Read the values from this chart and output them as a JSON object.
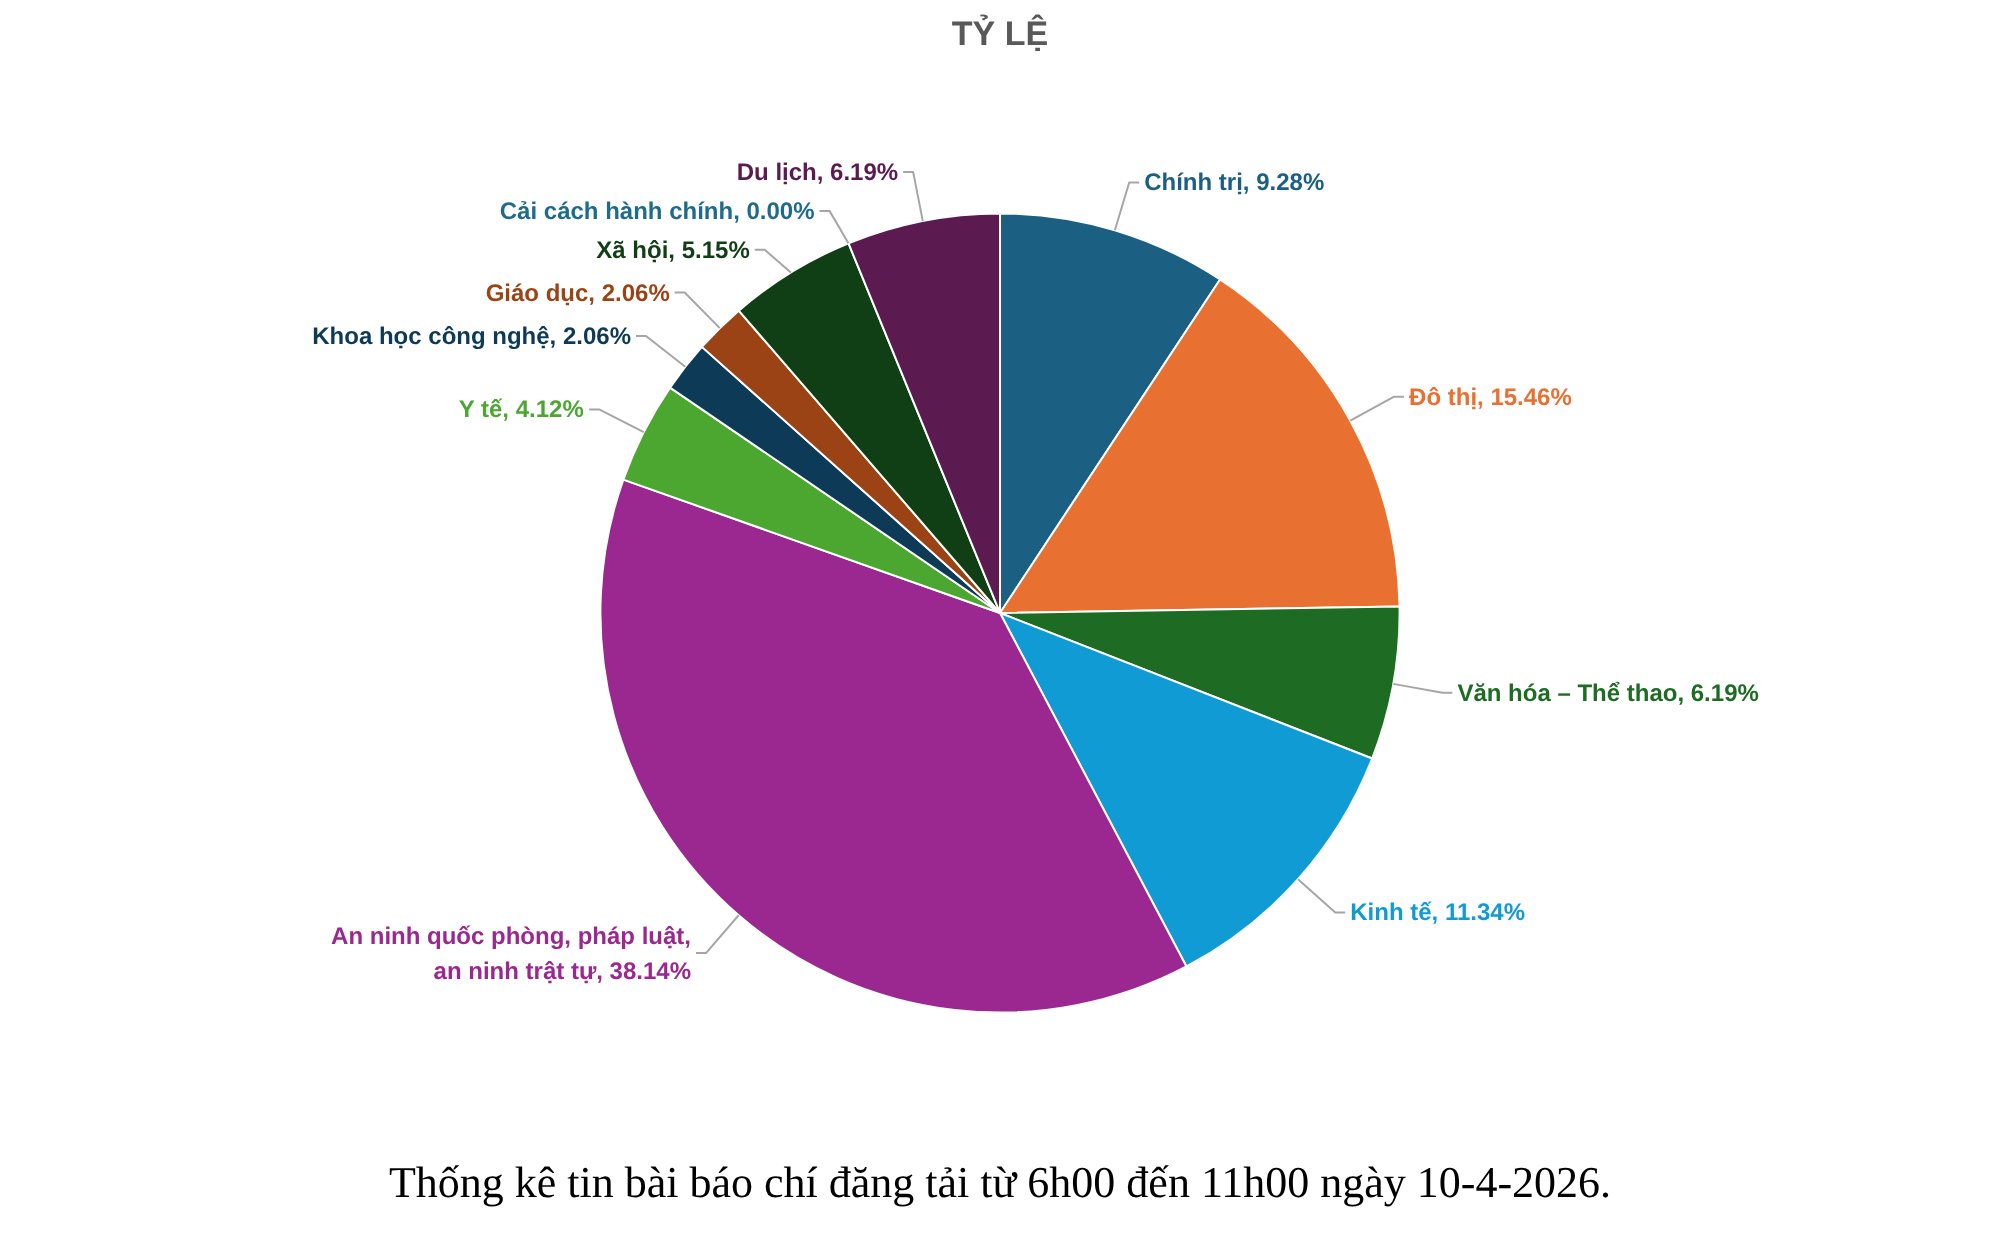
{
  "chart_data": {
    "type": "pie",
    "title": "TỶ LỆ",
    "categories": [
      "Chính trị",
      "Đô thị",
      "Văn hóa – Thể thao",
      "Kinh tế",
      "An ninh quốc phòng, pháp luật, an ninh trật tự",
      "Y tế",
      "Khoa học công nghệ",
      "Giáo dục",
      "Xã hội",
      "Cải cách hành chính",
      "Du lịch"
    ],
    "values": [
      9.28,
      15.46,
      6.19,
      11.34,
      38.14,
      4.12,
      2.06,
      2.06,
      5.15,
      0.0,
      6.19
    ],
    "colors": [
      "#1b5f82",
      "#e87030",
      "#1e6b24",
      "#119bd5",
      "#9b2890",
      "#4ba72f",
      "#0d3b57",
      "#9c4315",
      "#103f16",
      "#1f6b8c",
      "#5b1a50"
    ],
    "value_labels": [
      "9.28%",
      "15.46%",
      "6.19%",
      "11.34%",
      "38.14%",
      "4.12%",
      "2.06%",
      "2.06%",
      "5.15%",
      "0.00%",
      "6.19%"
    ],
    "annotations": [
      "Thống kê tin bài báo chí đăng tải từ 6h00 đến 11h00 ngày 10-4-2026."
    ]
  }
}
